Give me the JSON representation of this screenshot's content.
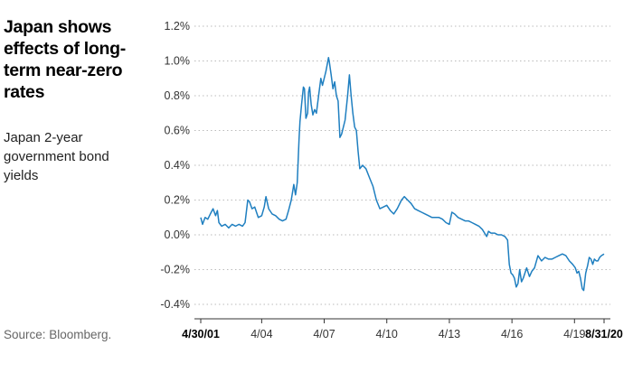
{
  "title": "Japan shows effects of long-term near-zero rates",
  "subtitle": "Japan 2-year government bond yields",
  "source": "Source: Bloomberg.",
  "colors": {
    "line": "#1f7fc0",
    "grid": "#bbbbbb",
    "axis": "#333333"
  },
  "chart_data": {
    "type": "line",
    "title": "Japan shows effects of long-term near-zero rates",
    "subtitle": "Japan 2-year government bond yields",
    "xlabel": "",
    "ylabel": "",
    "ylim": [
      -0.4,
      1.2
    ],
    "y_ticks": [
      {
        "value": 1.2,
        "label": "1.2%"
      },
      {
        "value": 1.0,
        "label": "1.0%"
      },
      {
        "value": 0.8,
        "label": "0.8%"
      },
      {
        "value": 0.6,
        "label": "0.6%"
      },
      {
        "value": 0.4,
        "label": "0.4%"
      },
      {
        "value": 0.2,
        "label": "0.2%"
      },
      {
        "value": 0.0,
        "label": "0.0%"
      },
      {
        "value": -0.2,
        "label": "-0.2%"
      },
      {
        "value": -0.4,
        "label": "-0.4%"
      }
    ],
    "x_ticks": [
      {
        "value": "2001-04-30",
        "label": "4/30/01",
        "bold": true
      },
      {
        "value": "2004-04-01",
        "label": "4/04",
        "bold": false
      },
      {
        "value": "2007-04-01",
        "label": "4/07",
        "bold": false
      },
      {
        "value": "2010-04-01",
        "label": "4/10",
        "bold": false
      },
      {
        "value": "2013-04-01",
        "label": "4/13",
        "bold": false
      },
      {
        "value": "2016-04-01",
        "label": "4/16",
        "bold": false
      },
      {
        "value": "2019-04-01",
        "label": "4/19",
        "bold": false
      },
      {
        "value": "2020-08-31",
        "label": "8/31/20",
        "bold": true
      }
    ],
    "grid": "horizontal-dotted",
    "series": [
      {
        "points": [
          [
            "2001-04-30",
            0.1
          ],
          [
            "2001-06-01",
            0.06
          ],
          [
            "2001-07-15",
            0.1
          ],
          [
            "2001-09-01",
            0.09
          ],
          [
            "2001-10-15",
            0.12
          ],
          [
            "2001-12-01",
            0.15
          ],
          [
            "2002-01-15",
            0.11
          ],
          [
            "2002-02-15",
            0.14
          ],
          [
            "2002-03-15",
            0.07
          ],
          [
            "2002-05-01",
            0.05
          ],
          [
            "2002-07-01",
            0.06
          ],
          [
            "2002-09-01",
            0.04
          ],
          [
            "2002-11-01",
            0.06
          ],
          [
            "2003-01-01",
            0.05
          ],
          [
            "2003-03-01",
            0.06
          ],
          [
            "2003-05-01",
            0.05
          ],
          [
            "2003-06-15",
            0.07
          ],
          [
            "2003-08-01",
            0.2
          ],
          [
            "2003-09-01",
            0.19
          ],
          [
            "2003-10-15",
            0.15
          ],
          [
            "2003-12-01",
            0.16
          ],
          [
            "2004-02-01",
            0.1
          ],
          [
            "2004-04-01",
            0.11
          ],
          [
            "2004-05-15",
            0.16
          ],
          [
            "2004-06-15",
            0.22
          ],
          [
            "2004-08-01",
            0.15
          ],
          [
            "2004-10-01",
            0.12
          ],
          [
            "2004-12-01",
            0.11
          ],
          [
            "2005-02-01",
            0.09
          ],
          [
            "2005-04-01",
            0.08
          ],
          [
            "2005-06-01",
            0.09
          ],
          [
            "2005-07-15",
            0.14
          ],
          [
            "2005-09-01",
            0.2
          ],
          [
            "2005-10-15",
            0.29
          ],
          [
            "2005-11-15",
            0.23
          ],
          [
            "2005-12-15",
            0.3
          ],
          [
            "2006-01-15",
            0.55
          ],
          [
            "2006-02-01",
            0.65
          ],
          [
            "2006-03-01",
            0.75
          ],
          [
            "2006-04-01",
            0.85
          ],
          [
            "2006-04-20",
            0.84
          ],
          [
            "2006-05-15",
            0.67
          ],
          [
            "2006-06-15",
            0.7
          ],
          [
            "2006-07-01",
            0.82
          ],
          [
            "2006-07-20",
            0.85
          ],
          [
            "2006-08-15",
            0.75
          ],
          [
            "2006-09-15",
            0.69
          ],
          [
            "2006-10-15",
            0.72
          ],
          [
            "2006-11-15",
            0.7
          ],
          [
            "2007-01-01",
            0.82
          ],
          [
            "2007-02-01",
            0.9
          ],
          [
            "2007-03-01",
            0.86
          ],
          [
            "2007-05-01",
            0.94
          ],
          [
            "2007-06-15",
            1.02
          ],
          [
            "2007-07-01",
            0.99
          ],
          [
            "2007-08-01",
            0.92
          ],
          [
            "2007-09-01",
            0.84
          ],
          [
            "2007-10-01",
            0.88
          ],
          [
            "2007-11-01",
            0.8
          ],
          [
            "2007-12-01",
            0.77
          ],
          [
            "2008-01-01",
            0.56
          ],
          [
            "2008-02-01",
            0.58
          ],
          [
            "2008-04-01",
            0.66
          ],
          [
            "2008-05-15",
            0.8
          ],
          [
            "2008-06-15",
            0.92
          ],
          [
            "2008-07-15",
            0.8
          ],
          [
            "2008-08-15",
            0.7
          ],
          [
            "2008-09-15",
            0.62
          ],
          [
            "2008-10-15",
            0.6
          ],
          [
            "2008-11-15",
            0.48
          ],
          [
            "2008-12-15",
            0.38
          ],
          [
            "2009-02-01",
            0.4
          ],
          [
            "2009-04-01",
            0.38
          ],
          [
            "2009-06-01",
            0.33
          ],
          [
            "2009-08-01",
            0.28
          ],
          [
            "2009-10-01",
            0.2
          ],
          [
            "2009-12-01",
            0.15
          ],
          [
            "2010-02-01",
            0.16
          ],
          [
            "2010-04-01",
            0.17
          ],
          [
            "2010-06-01",
            0.14
          ],
          [
            "2010-08-01",
            0.12
          ],
          [
            "2010-10-01",
            0.15
          ],
          [
            "2010-12-15",
            0.2
          ],
          [
            "2011-02-01",
            0.22
          ],
          [
            "2011-04-01",
            0.2
          ],
          [
            "2011-06-01",
            0.18
          ],
          [
            "2011-08-01",
            0.15
          ],
          [
            "2011-10-01",
            0.14
          ],
          [
            "2011-12-01",
            0.13
          ],
          [
            "2012-02-01",
            0.12
          ],
          [
            "2012-04-01",
            0.11
          ],
          [
            "2012-06-01",
            0.1
          ],
          [
            "2012-08-01",
            0.1
          ],
          [
            "2012-10-01",
            0.1
          ],
          [
            "2012-12-01",
            0.09
          ],
          [
            "2013-02-01",
            0.07
          ],
          [
            "2013-04-01",
            0.06
          ],
          [
            "2013-05-15",
            0.13
          ],
          [
            "2013-07-01",
            0.12
          ],
          [
            "2013-09-01",
            0.1
          ],
          [
            "2013-11-01",
            0.09
          ],
          [
            "2014-01-01",
            0.08
          ],
          [
            "2014-03-01",
            0.08
          ],
          [
            "2014-05-01",
            0.07
          ],
          [
            "2014-07-01",
            0.06
          ],
          [
            "2014-09-01",
            0.05
          ],
          [
            "2014-11-01",
            0.03
          ],
          [
            "2015-01-15",
            -0.01
          ],
          [
            "2015-02-15",
            0.02
          ],
          [
            "2015-04-01",
            0.01
          ],
          [
            "2015-06-01",
            0.01
          ],
          [
            "2015-08-01",
            0.0
          ],
          [
            "2015-10-01",
            0.0
          ],
          [
            "2015-12-01",
            -0.01
          ],
          [
            "2016-01-15",
            -0.03
          ],
          [
            "2016-02-15",
            -0.17
          ],
          [
            "2016-03-15",
            -0.22
          ],
          [
            "2016-04-15",
            -0.23
          ],
          [
            "2016-05-15",
            -0.25
          ],
          [
            "2016-06-15",
            -0.3
          ],
          [
            "2016-07-15",
            -0.28
          ],
          [
            "2016-08-15",
            -0.2
          ],
          [
            "2016-09-15",
            -0.27
          ],
          [
            "2016-10-15",
            -0.25
          ],
          [
            "2016-11-15",
            -0.22
          ],
          [
            "2016-12-15",
            -0.19
          ],
          [
            "2017-02-01",
            -0.24
          ],
          [
            "2017-03-15",
            -0.21
          ],
          [
            "2017-05-01",
            -0.19
          ],
          [
            "2017-07-01",
            -0.12
          ],
          [
            "2017-09-01",
            -0.15
          ],
          [
            "2017-11-01",
            -0.13
          ],
          [
            "2018-01-01",
            -0.14
          ],
          [
            "2018-03-01",
            -0.14
          ],
          [
            "2018-05-01",
            -0.13
          ],
          [
            "2018-07-01",
            -0.12
          ],
          [
            "2018-09-01",
            -0.11
          ],
          [
            "2018-11-01",
            -0.12
          ],
          [
            "2019-01-01",
            -0.15
          ],
          [
            "2019-03-01",
            -0.17
          ],
          [
            "2019-04-15",
            -0.19
          ],
          [
            "2019-05-15",
            -0.22
          ],
          [
            "2019-06-15",
            -0.21
          ],
          [
            "2019-07-15",
            -0.25
          ],
          [
            "2019-08-15",
            -0.31
          ],
          [
            "2019-09-10",
            -0.32
          ],
          [
            "2019-10-15",
            -0.22
          ],
          [
            "2019-11-15",
            -0.18
          ],
          [
            "2019-12-15",
            -0.13
          ],
          [
            "2020-01-15",
            -0.14
          ],
          [
            "2020-02-15",
            -0.17
          ],
          [
            "2020-03-15",
            -0.14
          ],
          [
            "2020-04-15",
            -0.15
          ],
          [
            "2020-05-15",
            -0.15
          ],
          [
            "2020-06-15",
            -0.13
          ],
          [
            "2020-07-15",
            -0.12
          ],
          [
            "2020-08-31",
            -0.11
          ]
        ]
      }
    ]
  }
}
